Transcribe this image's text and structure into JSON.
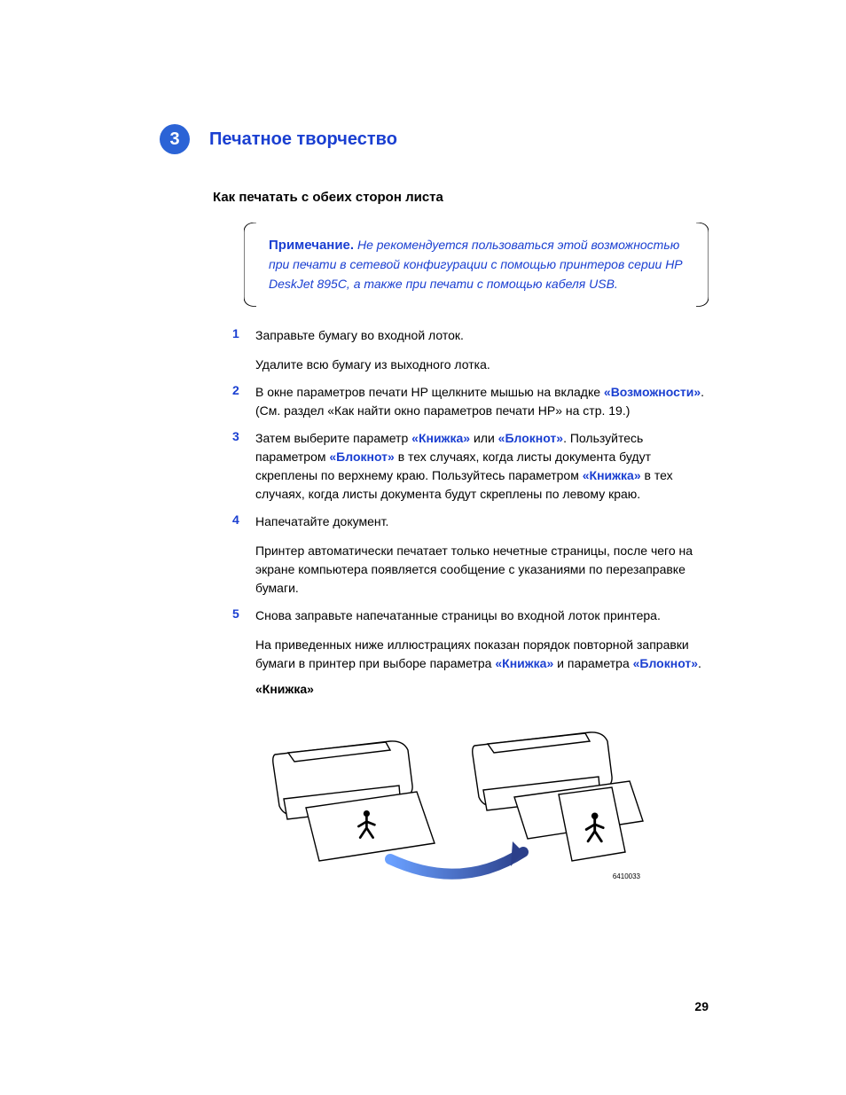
{
  "colors": {
    "accent_blue": "#1a3fd1",
    "badge_blue": "#2b63d6",
    "text_black": "#000000",
    "page_bg": "#ffffff"
  },
  "chapter": {
    "number": "3",
    "title": "Печатное творчество"
  },
  "section_heading": "Как печатать с обеих сторон листа",
  "note": {
    "label": "Примечание.",
    "body": "Не рекомендуется пользоваться этой возможностью при печати в сетевой конфигурации с помощью принтеров серии HP DeskJet 895C, а также при печати с помощью кабеля USB."
  },
  "steps": [
    {
      "num": "1",
      "paras": [
        {
          "runs": [
            {
              "t": "Заправьте бумагу во входной лоток."
            }
          ]
        },
        {
          "runs": [
            {
              "t": "Удалите всю бумагу из выходного лотка."
            }
          ]
        }
      ]
    },
    {
      "num": "2",
      "paras": [
        {
          "runs": [
            {
              "t": "В окне параметров печати HP щелкните мышью на вкладке "
            },
            {
              "t": "«Возможности»",
              "blue": true
            },
            {
              "t": ". (См. раздел «Как найти окно параметров печати HP» на стр. 19.)"
            }
          ]
        }
      ]
    },
    {
      "num": "3",
      "paras": [
        {
          "runs": [
            {
              "t": "Затем выберите параметр "
            },
            {
              "t": "«Книжка»",
              "blue": true
            },
            {
              "t": " или "
            },
            {
              "t": "«Блокнот»",
              "blue": true
            },
            {
              "t": ". Пользуйтесь параметром "
            },
            {
              "t": "«Блокнот»",
              "blue": true
            },
            {
              "t": " в тех случаях, когда листы документа будут скреплены по верхнему краю. Пользуйтесь параметром "
            },
            {
              "t": "«Книжка»",
              "blue": true
            },
            {
              "t": " в тех случаях, когда листы документа будут скреплены по левому краю."
            }
          ]
        }
      ]
    },
    {
      "num": "4",
      "paras": [
        {
          "runs": [
            {
              "t": "Напечатайте документ."
            }
          ]
        },
        {
          "runs": [
            {
              "t": "Принтер автоматически печатает только нечетные страницы, после чего на экране компьютера появляется сообщение с указаниями по перезаправке бумаги."
            }
          ]
        }
      ]
    },
    {
      "num": "5",
      "paras": [
        {
          "runs": [
            {
              "t": "Снова заправьте напечатанные страницы во входной лоток принтера."
            }
          ]
        },
        {
          "runs": [
            {
              "t": "На приведенных ниже иллюстрациях показан порядок повторной заправки бумаги в принтер при выборе параметра "
            },
            {
              "t": "«Книжка»",
              "blue": true
            },
            {
              "t": " и параметра "
            },
            {
              "t": "«Блокнот»",
              "blue": true
            },
            {
              "t": "."
            }
          ]
        }
      ]
    }
  ],
  "figure": {
    "caption": "«Книжка»",
    "code": "6410033"
  },
  "page_number": "29"
}
